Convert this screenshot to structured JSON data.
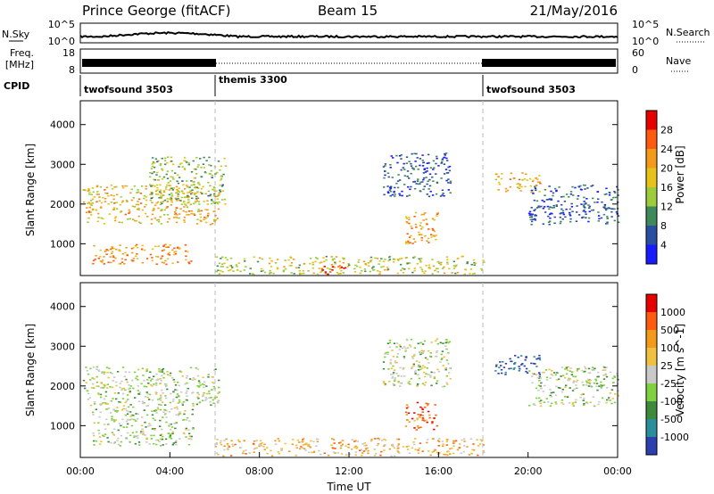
{
  "header": {
    "station": "Prince George (fitACF)",
    "beam": "Beam 15",
    "date": "21/May/2016"
  },
  "noise_panel": {
    "left_label": "N.Sky",
    "right_label": "N.Search",
    "left_ticks": [
      "10^5",
      "10^0"
    ],
    "right_ticks": [
      "10^5",
      "10^0"
    ]
  },
  "freq_panel": {
    "left_label_top": "Freq.",
    "left_label_bottom": "[MHz]",
    "left_ticks": [
      "18",
      "8"
    ],
    "right_label": "Nave",
    "right_ticks": [
      "60",
      "0"
    ]
  },
  "cpid": {
    "label": "CPID",
    "segments": [
      {
        "name": "twofsound 3503",
        "start_hour": 0,
        "end_hour": 6
      },
      {
        "name": "themis 3300",
        "start_hour": 6,
        "end_hour": 18
      },
      {
        "name": "twofsound 3503",
        "start_hour": 18,
        "end_hour": 24
      }
    ]
  },
  "chart_data": [
    {
      "type": "heatmap",
      "name": "power",
      "ylabel": "Slant Range [km]",
      "yticks": [
        "1000",
        "2000",
        "3000",
        "4000"
      ],
      "ylim": [
        200,
        4600
      ],
      "colorbar_label": "Power [dB]",
      "colorbar_ticks": [
        "4",
        "8",
        "12",
        "16",
        "20",
        "24",
        "28"
      ],
      "colors": [
        "#1a1aff",
        "#2b4fa0",
        "#3f8a5a",
        "#9ccc3c",
        "#e6c21a",
        "#f39a1b",
        "#ff5b10",
        "#e60000"
      ],
      "regions": [
        {
          "x": [
            0.1,
            6.2
          ],
          "y": [
            1500,
            2500
          ],
          "level": 0.6
        },
        {
          "x": [
            0.5,
            5.0
          ],
          "y": [
            500,
            1000
          ],
          "level": 0.7
        },
        {
          "x": [
            3.0,
            6.5
          ],
          "y": [
            2000,
            3200
          ],
          "level": 0.4
        },
        {
          "x": [
            6.0,
            18.0
          ],
          "y": [
            250,
            700
          ],
          "level": 0.5
        },
        {
          "x": [
            10.5,
            12.0
          ],
          "y": [
            250,
            450
          ],
          "level": 1.0
        },
        {
          "x": [
            14.5,
            16.0
          ],
          "y": [
            1000,
            1800
          ],
          "level": 0.7
        },
        {
          "x": [
            18.5,
            20.5
          ],
          "y": [
            2300,
            2800
          ],
          "level": 0.6
        },
        {
          "x": [
            13.5,
            16.5
          ],
          "y": [
            2200,
            3300
          ],
          "level": 0.2
        },
        {
          "x": [
            20.0,
            24.0
          ],
          "y": [
            1500,
            2500
          ],
          "level": 0.2
        }
      ]
    },
    {
      "type": "heatmap",
      "name": "velocity",
      "ylabel": "Slant Range [km]",
      "yticks": [
        "1000",
        "2000",
        "3000",
        "4000"
      ],
      "ylim": [
        200,
        4600
      ],
      "xlabel": "Time UT",
      "xticks": [
        "00:00",
        "04:00",
        "08:00",
        "12:00",
        "16:00",
        "20:00",
        "00:00"
      ],
      "xlim": [
        0,
        24
      ],
      "colorbar_label": "Velocity [m s^-1]",
      "colorbar_ticks": [
        "1000",
        "500",
        "100",
        "25",
        "-25",
        "-100",
        "-500",
        "-1000"
      ],
      "colors": [
        "#2b3fae",
        "#2a8f9a",
        "#3d8a3d",
        "#80d040",
        "#c9c9c9",
        "#f0c040",
        "#f39a1b",
        "#ff5b10",
        "#e60000"
      ],
      "regions": [
        {
          "x": [
            0.1,
            6.2
          ],
          "y": [
            1500,
            2500
          ],
          "level": 0.45
        },
        {
          "x": [
            0.5,
            5.0
          ],
          "y": [
            500,
            1500
          ],
          "level": 0.45
        },
        {
          "x": [
            6.0,
            18.0
          ],
          "y": [
            250,
            700
          ],
          "level": 0.65
        },
        {
          "x": [
            14.5,
            16.0
          ],
          "y": [
            900,
            1600
          ],
          "level": 0.8
        },
        {
          "x": [
            18.5,
            20.5
          ],
          "y": [
            2300,
            2800
          ],
          "level": 0.05
        },
        {
          "x": [
            13.5,
            16.5
          ],
          "y": [
            2000,
            3200
          ],
          "level": 0.45
        },
        {
          "x": [
            20.0,
            24.0
          ],
          "y": [
            1500,
            2500
          ],
          "level": 0.45
        }
      ]
    }
  ]
}
